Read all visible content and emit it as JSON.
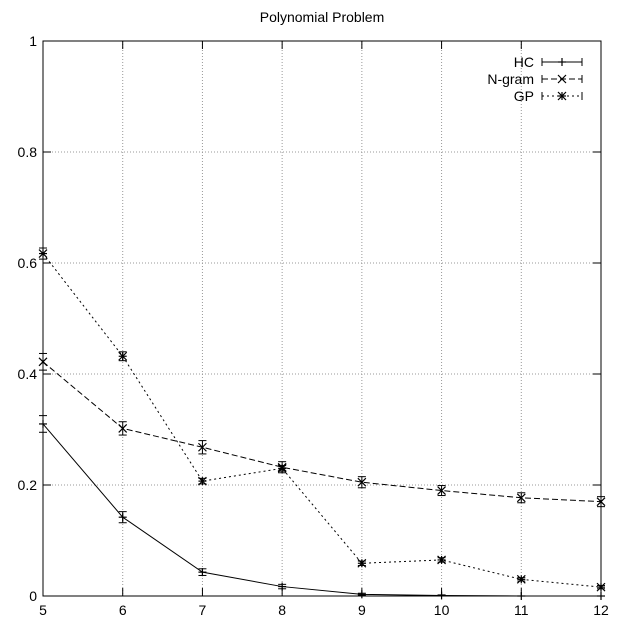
{
  "chart_data": {
    "type": "line",
    "title": "Polynomial Problem",
    "xlabel": "",
    "ylabel": "",
    "xlim": [
      5,
      12
    ],
    "ylim": [
      0,
      1
    ],
    "x_ticks": [
      "5",
      "6",
      "7",
      "8",
      "9",
      "10",
      "11",
      "12"
    ],
    "y_ticks": [
      "0",
      "0.2",
      "0.4",
      "0.6",
      "0.8",
      "1"
    ],
    "grid": true,
    "legend_position": "top-right",
    "x": [
      5,
      6,
      7,
      8,
      9,
      10,
      11,
      12
    ],
    "series": [
      {
        "name": "HC",
        "marker": "plus",
        "dash": "solid",
        "values": [
          0.31,
          0.142,
          0.043,
          0.017,
          0.003,
          0.001,
          0.0,
          0.0
        ],
        "errors": [
          0.015,
          0.01,
          0.006,
          0.004,
          0.002,
          0.001,
          0.0,
          0.0
        ]
      },
      {
        "name": "N-gram",
        "marker": "x",
        "dash": "dashed",
        "values": [
          0.422,
          0.302,
          0.268,
          0.232,
          0.205,
          0.19,
          0.177,
          0.17
        ],
        "errors": [
          0.015,
          0.012,
          0.012,
          0.01,
          0.01,
          0.009,
          0.009,
          0.009
        ]
      },
      {
        "name": "GP",
        "marker": "star",
        "dash": "dotted",
        "values": [
          0.617,
          0.432,
          0.207,
          0.23,
          0.059,
          0.065,
          0.03,
          0.016
        ],
        "errors": [
          0.01,
          0.008,
          0.005,
          0.005,
          0.004,
          0.004,
          0.003,
          0.003
        ]
      }
    ]
  }
}
